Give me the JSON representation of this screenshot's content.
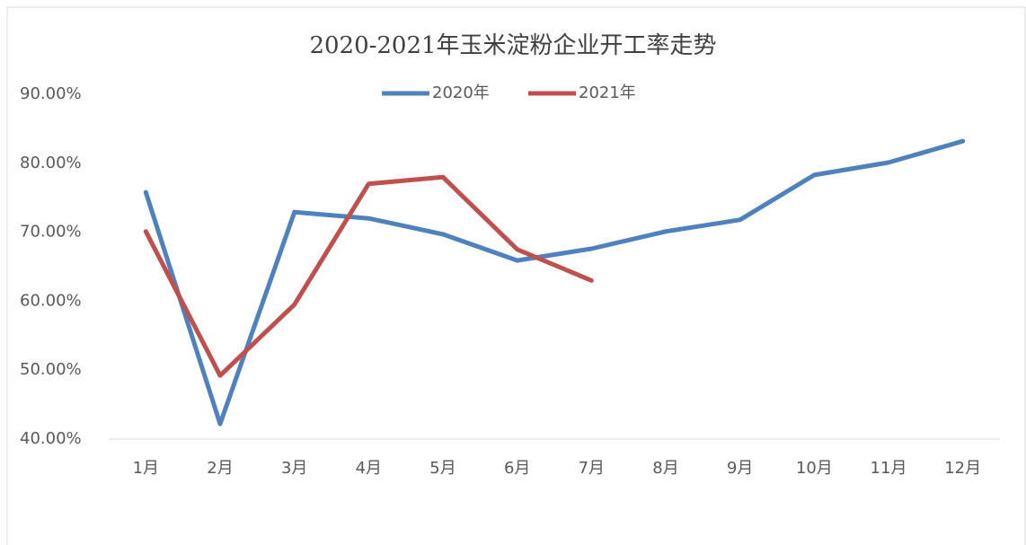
{
  "chart_data": {
    "type": "line",
    "title": "2020-2021年玉米淀粉企业开工率走势",
    "categories": [
      "1月",
      "2月",
      "3月",
      "4月",
      "5月",
      "6月",
      "7月",
      "8月",
      "9月",
      "10月",
      "11月",
      "12月"
    ],
    "series": [
      {
        "name": "2020年",
        "color": "#4f81bd",
        "values": [
          75.8,
          42.2,
          72.9,
          72.0,
          69.7,
          65.9,
          67.6,
          70.1,
          71.8,
          78.3,
          80.1,
          83.2
        ]
      },
      {
        "name": "2021年",
        "color": "#c0504d",
        "values": [
          70.1,
          49.2,
          59.5,
          77.0,
          78.0,
          67.5,
          63.0,
          null,
          null,
          null,
          null,
          null
        ]
      }
    ],
    "ylim": [
      40,
      90
    ],
    "yticks": [
      {
        "value": 40,
        "label": "40.00%"
      },
      {
        "value": 50,
        "label": "50.00%"
      },
      {
        "value": 60,
        "label": "60.00%"
      },
      {
        "value": 70,
        "label": "70.00%"
      },
      {
        "value": 80,
        "label": "80.00%"
      },
      {
        "value": 90,
        "label": "90.00%"
      }
    ],
    "grid": false,
    "legend": "top"
  }
}
